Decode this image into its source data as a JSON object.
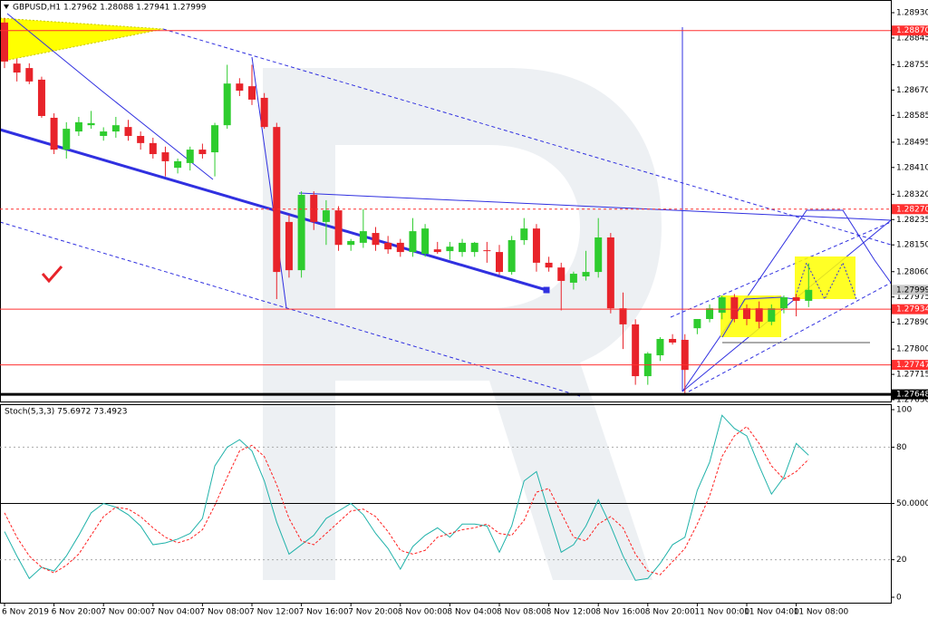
{
  "chart_data": [
    {
      "type": "candlestick",
      "title": "GBPUSD,H1  1.27962 1.28088 1.27941 1.27999",
      "up_color": "#2ecc2e",
      "down_color": "#e8232a",
      "categories": [
        "6 Nov 2019",
        null,
        null,
        null,
        "6 Nov 20:00",
        null,
        null,
        null,
        "7 Nov 00:00",
        null,
        null,
        null,
        "7 Nov 04:00",
        null,
        null,
        null,
        "7 Nov 08:00",
        null,
        null,
        null,
        "7 Nov 12:00",
        null,
        null,
        null,
        "7 Nov 16:00",
        null,
        null,
        null,
        "7 Nov 20:00",
        null,
        null,
        null,
        "8 Nov 00:00",
        null,
        null,
        null,
        "8 Nov 04:00",
        null,
        null,
        null,
        "8 Nov 08:00",
        null,
        null,
        null,
        "8 Nov 12:00",
        null,
        null,
        null,
        "8 Nov 16:00",
        null,
        null,
        null,
        "8 Nov 20:00",
        null,
        null,
        null,
        "11 Nov 00:00",
        null,
        null,
        null,
        "11 Nov 04:00",
        null,
        null,
        null,
        "11 Nov 08:00",
        null
      ],
      "open": [
        1.28897,
        1.28759,
        1.28744,
        1.28705,
        1.28577,
        1.2847,
        1.28531,
        1.28552,
        1.28516,
        1.28531,
        1.28546,
        1.28516,
        1.28492,
        1.28461,
        1.28409,
        1.28425,
        1.2847,
        1.28461,
        1.28552,
        1.28692,
        1.28683,
        1.28644,
        1.28546,
        1.28227,
        1.28065,
        1.28318,
        1.28227,
        1.28266,
        1.2815,
        1.28157,
        1.2819,
        1.28157,
        1.28157,
        1.28126,
        1.2812,
        1.28135,
        1.28129,
        1.28126,
        1.28126,
        1.28132,
        1.28126,
        1.28059,
        1.28166,
        1.28205,
        1.2809,
        1.28074,
        1.28023,
        1.28044,
        1.28059,
        1.28175,
        1.27937,
        1.27883,
        1.27709,
        1.27779,
        1.27834,
        1.27831,
        1.2787,
        1.27901,
        1.27922,
        1.27974,
        1.27937,
        1.27937,
        1.27892,
        1.27937,
        1.27974,
        1.27962
      ],
      "high": [
        1.28912,
        1.28775,
        1.2876,
        1.28715,
        1.28592,
        1.28562,
        1.2858,
        1.286,
        1.28545,
        1.2858,
        1.2857,
        1.28531,
        1.2851,
        1.2848,
        1.2844,
        1.2848,
        1.2849,
        1.2856,
        1.28755,
        1.2871,
        1.28755,
        1.2866,
        1.2856,
        1.2825,
        1.2833,
        1.2833,
        1.283,
        1.2828,
        1.2817,
        1.2827,
        1.2821,
        1.2818,
        1.2817,
        1.2824,
        1.2822,
        1.2816,
        1.2816,
        1.2817,
        1.2816,
        1.2816,
        1.2815,
        1.2818,
        1.2824,
        1.2822,
        1.2811,
        1.2809,
        1.2806,
        1.2813,
        1.2824,
        1.2819,
        1.2799,
        1.279,
        1.2779,
        1.2784,
        1.2785,
        1.2785,
        1.279,
        1.2795,
        1.2798,
        1.27985,
        1.2795,
        1.2796,
        1.2795,
        1.2798,
        1.27985,
        1.28088
      ],
      "low": [
        1.28744,
        1.28699,
        1.2869,
        1.28577,
        1.28455,
        1.2844,
        1.28516,
        1.2854,
        1.285,
        1.2851,
        1.285,
        1.2847,
        1.2844,
        1.2838,
        1.2839,
        1.284,
        1.2844,
        1.2838,
        1.2854,
        1.2865,
        1.2862,
        1.2854,
        1.27968,
        1.2804,
        1.2804,
        1.282,
        1.2815,
        1.2813,
        1.2813,
        1.2814,
        1.2813,
        1.2812,
        1.2811,
        1.2811,
        1.2811,
        1.2812,
        1.281,
        1.2811,
        1.2811,
        1.2809,
        1.2805,
        1.2805,
        1.2815,
        1.2806,
        1.2806,
        1.2793,
        1.28,
        1.2803,
        1.2804,
        1.2792,
        1.278,
        1.2768,
        1.2768,
        1.2776,
        1.27815,
        1.27648,
        1.2785,
        1.2789,
        1.279,
        1.2789,
        1.2788,
        1.2787,
        1.2788,
        1.2792,
        1.2791,
        1.27941
      ],
      "close": [
        1.28766,
        1.28729,
        1.28699,
        1.28583,
        1.2847,
        1.2854,
        1.28562,
        1.28559,
        1.28531,
        1.28552,
        1.28516,
        1.28492,
        1.28455,
        1.28431,
        1.28431,
        1.2847,
        1.28455,
        1.28552,
        1.28692,
        1.28668,
        1.28638,
        1.28546,
        1.28059,
        1.28065,
        1.28318,
        1.28227,
        1.28266,
        1.2815,
        1.28163,
        1.28196,
        1.2815,
        1.28135,
        1.28126,
        1.28196,
        1.28205,
        1.28126,
        1.28144,
        1.28157,
        1.28157,
        1.2813,
        1.28059,
        1.28166,
        1.28205,
        1.2809,
        1.28074,
        1.28029,
        1.28053,
        1.28059,
        1.28175,
        1.27937,
        1.27883,
        1.27709,
        1.27785,
        1.27834,
        1.27822,
        1.2773,
        1.27901,
        1.27937,
        1.27974,
        1.27901,
        1.27901,
        1.27892,
        1.27937,
        1.27974,
        1.27962,
        1.27999
      ],
      "ylim": [
        1.2763,
        1.2893
      ],
      "yticks": [
        {
          "value": 1.2763,
          "label": "1.27630"
        },
        1.27715,
        {
          "value": 1.278,
          "label": "1.27800"
        },
        {
          "value": 1.2789,
          "label": "1.27890"
        },
        1.27975,
        {
          "value": 1.2806,
          "label": "1.28060"
        },
        {
          "value": 1.2815,
          "label": "1.28150"
        },
        1.28235,
        {
          "value": 1.2832,
          "label": "1.28320"
        },
        {
          "value": 1.2841,
          "label": "1.28410"
        },
        1.28495,
        1.28585,
        {
          "value": 1.2867,
          "label": "1.28670"
        },
        1.28755,
        1.28845,
        {
          "value": 1.2893,
          "label": "1.28930"
        }
      ],
      "levels": [
        {
          "value": 1.2887,
          "label": "1.28870",
          "color": "#ff3030",
          "style": "solid",
          "label_bg": "#ff3030",
          "text_color": "#ffffff"
        },
        {
          "value": 1.2827,
          "label": "1.28270",
          "color": "#ff3030",
          "style": "dashed",
          "label_bg": "#ff3030",
          "text_color": "#ffffff"
        },
        {
          "value": 1.27999,
          "label_bg": "#c8c8c8",
          "text_color": "#000000"
        },
        {
          "value": 1.27934,
          "color": "#ff3030",
          "style": "solid",
          "label_bg": "#ff3030",
          "text_color": "#ffffff"
        },
        {
          "value": 1.27747,
          "color": "#ff3030",
          "style": "solid",
          "label_bg": "#ff3030",
          "text_color": "#ffffff"
        },
        {
          "value": 1.27648,
          "color": "#000000",
          "style": "thick",
          "label_bg": "#000000",
          "text_color": "#ffffff"
        }
      ]
    },
    {
      "type": "line",
      "title": "Stoch(5,3,3) 75.6972 73.4923",
      "ylim": [
        0,
        100
      ],
      "yticks": [
        0,
        20,
        {
          "value": 50,
          "label": "50.0000"
        },
        80,
        100
      ],
      "levels": [
        {
          "value": 20,
          "style": "dotted"
        },
        {
          "value": 50,
          "style": "solid"
        },
        {
          "value": 80,
          "style": "dotted"
        }
      ],
      "series": [
        {
          "color": "#20b2aa",
          "style": "solid",
          "values": [
            35,
            22,
            10,
            16,
            14,
            22,
            33,
            45,
            50,
            48,
            44,
            38,
            28,
            29,
            31,
            34,
            42,
            70,
            80,
            84,
            78,
            62,
            40,
            23,
            28,
            33,
            42,
            46,
            50,
            44,
            34,
            26,
            15,
            27,
            33,
            37,
            32,
            39,
            39,
            38,
            24,
            38,
            62,
            67,
            45,
            24,
            28,
            38,
            52,
            38,
            22,
            9,
            10,
            18,
            28,
            32,
            57,
            72,
            97,
            90,
            86,
            70,
            55,
            64,
            82,
            75.6972
          ]
        },
        {
          "color": "#ff2020",
          "style": "dashed",
          "values": [
            45,
            32,
            22,
            16,
            13,
            17,
            23,
            33,
            43,
            48,
            47,
            43,
            37,
            32,
            29,
            31,
            36,
            49,
            64,
            78,
            81,
            75,
            60,
            42,
            30,
            28,
            34,
            40,
            46,
            47,
            43,
            35,
            25,
            23,
            25,
            32,
            34,
            36,
            37,
            39,
            34,
            33,
            41,
            56,
            58,
            45,
            32,
            30,
            39,
            43,
            37,
            23,
            14,
            12,
            19,
            26,
            39,
            54,
            75,
            86,
            91,
            82,
            70,
            63,
            67,
            73.4923
          ]
        }
      ]
    }
  ]
}
